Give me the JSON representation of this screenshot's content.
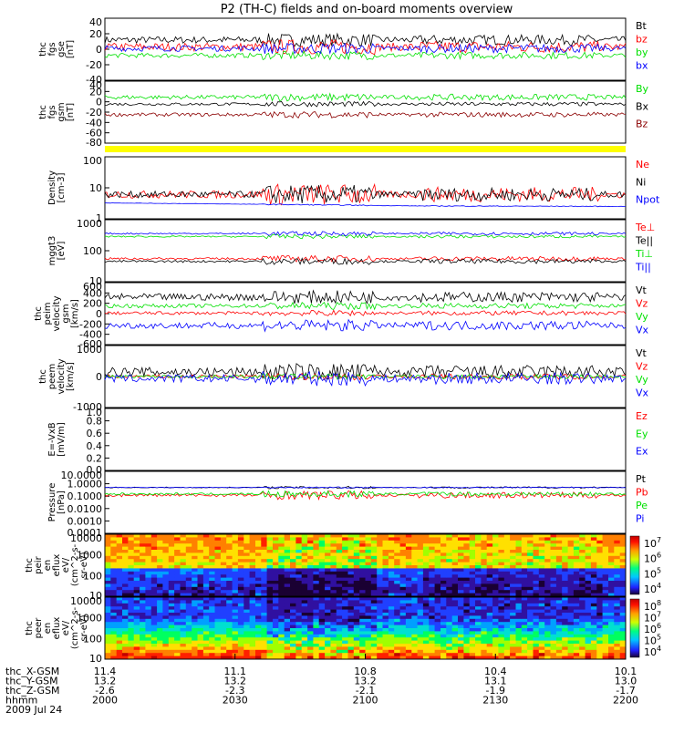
{
  "title": "P2 (TH-C) fields and on-board moments overview",
  "colors": {
    "black": "#000000",
    "red": "#ff0000",
    "green": "#00e000",
    "blue": "#0000ff",
    "darkred": "#8b0000",
    "yellow": "#ffff00"
  },
  "chart_data": [
    {
      "type": "line",
      "panel": "fgs-gse",
      "ylabel": [
        "thc",
        "fgs",
        "gse",
        "[nT]"
      ],
      "yticks": [
        "40",
        "20",
        "0",
        "-20",
        "-40"
      ],
      "ylim": [
        -40,
        40
      ],
      "series": [
        {
          "name": "Bt",
          "color": "#000000",
          "level": 12,
          "amp": 6
        },
        {
          "name": "bz",
          "color": "#ff0000",
          "level": 3,
          "amp": 7
        },
        {
          "name": "by",
          "color": "#00e000",
          "level": -8,
          "amp": 4
        },
        {
          "name": "bx",
          "color": "#0000ff",
          "level": 1,
          "amp": 5
        }
      ]
    },
    {
      "type": "line",
      "panel": "fgs-gsm",
      "ylabel": [
        "thc",
        "fgs",
        "gsm",
        "[nT]"
      ],
      "yticks": [
        "40",
        "20",
        "0",
        "-20",
        "-40",
        "-60",
        "-80"
      ],
      "ylim": [
        -90,
        45
      ],
      "series": [
        {
          "name": "By",
          "color": "#00e000",
          "level": 10,
          "amp": 6
        },
        {
          "name": "Bx",
          "color": "#000000",
          "level": -5,
          "amp": 4
        },
        {
          "name": "Bz",
          "color": "#8b0000",
          "level": -28,
          "amp": 5
        }
      ]
    },
    {
      "type": "line",
      "panel": "density",
      "log": true,
      "ylabel": [
        "Density",
        "[cm-3]"
      ],
      "yticks": [
        "100",
        "10",
        "1"
      ],
      "ylim": [
        1,
        200
      ],
      "series": [
        {
          "name": "Ne",
          "color": "#ff0000",
          "level": 8,
          "amp": 0.4
        },
        {
          "name": "Ni",
          "color": "#000000",
          "level": 8,
          "amp": 0.35
        },
        {
          "name": "Npot",
          "color": "#0000ff",
          "level": 3,
          "amp": 0.02
        }
      ]
    },
    {
      "type": "line",
      "panel": "temperature",
      "log": true,
      "ylabel": [
        "mggt3",
        "[eV]"
      ],
      "yticks": [
        "1000",
        "100",
        "10"
      ],
      "ylim": [
        5,
        4000
      ],
      "series": [
        {
          "name": "Te⊥",
          "color": "#ff0000",
          "level": 60,
          "amp": 0.15
        },
        {
          "name": "Te||",
          "color": "#000000",
          "level": 45,
          "amp": 0.15
        },
        {
          "name": "Ti⊥",
          "color": "#00e000",
          "level": 650,
          "amp": 0.1
        },
        {
          "name": "Ti||",
          "color": "#0000ff",
          "level": 900,
          "amp": 0.1
        }
      ]
    },
    {
      "type": "line",
      "panel": "peim-velocity",
      "ylabel": [
        "thc",
        "peim",
        "velocity",
        "gsm",
        "[km/s]"
      ],
      "yticks": [
        "600",
        "400",
        "200",
        "0",
        "-200",
        "-400",
        "-600"
      ],
      "ylim": [
        -600,
        600
      ],
      "series": [
        {
          "name": "Vt",
          "color": "#000000",
          "level": 320,
          "amp": 90
        },
        {
          "name": "Vz",
          "color": "#ff0000",
          "level": 10,
          "amp": 40
        },
        {
          "name": "Vy",
          "color": "#00e000",
          "level": 150,
          "amp": 50
        },
        {
          "name": "Vx",
          "color": "#0000ff",
          "level": -230,
          "amp": 80
        }
      ]
    },
    {
      "type": "line",
      "panel": "peem-velocity",
      "ylabel": [
        "thc",
        "peem",
        "velocity",
        "[km/s]"
      ],
      "yticks": [
        "1000",
        "0",
        "-1000"
      ],
      "ylim": [
        -1500,
        1500
      ],
      "series": [
        {
          "name": "Vt",
          "color": "#000000",
          "level": 220,
          "amp": 300
        },
        {
          "name": "Vz",
          "color": "#ff0000",
          "level": 0,
          "amp": 120
        },
        {
          "name": "Vy",
          "color": "#00e000",
          "level": 0,
          "amp": 100
        },
        {
          "name": "Vx",
          "color": "#0000ff",
          "level": -100,
          "amp": 250
        }
      ]
    },
    {
      "type": "line",
      "panel": "efield",
      "ylabel": [
        "E=-VxB",
        "[mV/m]"
      ],
      "yticks": [
        "1.0",
        "0.8",
        "0.6",
        "0.4",
        "0.2",
        "0.0"
      ],
      "ylim": [
        0,
        1
      ],
      "series": [
        {
          "name": "Ez",
          "color": "#ff0000"
        },
        {
          "name": "Ey",
          "color": "#00e000"
        },
        {
          "name": "Ex",
          "color": "#0000ff"
        }
      ]
    },
    {
      "type": "line",
      "panel": "pressure",
      "log": true,
      "ylabel": [
        "Pressure",
        "[nPa]"
      ],
      "yticks": [
        "10.0000",
        "1.0000",
        "0.1000",
        "0.0100",
        "0.0010",
        "0.0001"
      ],
      "ylim": [
        0.0001,
        10
      ],
      "series": [
        {
          "name": "Pt",
          "color": "#000000",
          "level": 0.5,
          "amp": 0.1
        },
        {
          "name": "Pb",
          "color": "#ff0000",
          "level": 0.12,
          "amp": 0.35
        },
        {
          "name": "Pe",
          "color": "#00e000",
          "level": 0.15,
          "amp": 0.25
        },
        {
          "name": "Pi",
          "color": "#0000ff",
          "level": 0.5,
          "amp": 0.05
        }
      ]
    },
    {
      "type": "heatmap",
      "panel": "peir-spectrogram",
      "ylabel": [
        "thc",
        "peir",
        "en",
        "eflux",
        "eV/",
        "(cm^2-s-",
        "sr-eV)"
      ],
      "yticks": [
        "10000",
        "1000",
        "100",
        "10"
      ],
      "colorbar_ticks": [
        "10^7",
        "10^6",
        "10^5",
        "10^4"
      ]
    },
    {
      "type": "heatmap",
      "panel": "peer-spectrogram",
      "ylabel": [
        "thc",
        "peer",
        "en",
        "eflux",
        "eV/",
        "(cm^2-s-",
        "sr-eV)"
      ],
      "yticks": [
        "10000",
        "1000",
        "100",
        "10"
      ],
      "colorbar_ticks": [
        "10^8",
        "10^7",
        "10^6",
        "10^5",
        "10^4"
      ]
    }
  ],
  "xaxis": {
    "rows": [
      {
        "label": "thc_X-GSM",
        "values": [
          "11.4",
          "11.1",
          "10.8",
          "10.4",
          "10.1"
        ]
      },
      {
        "label": "thc_Y-GSM",
        "values": [
          "13.2",
          "13.2",
          "13.2",
          "13.1",
          "13.0"
        ]
      },
      {
        "label": "thc_Z-GSM",
        "values": [
          "-2.6",
          "-2.3",
          "-2.1",
          "-1.9",
          "-1.7"
        ]
      },
      {
        "label": "hhmm",
        "values": [
          "2000",
          "2030",
          "2100",
          "2130",
          "2200"
        ]
      }
    ],
    "date": "2009 Jul 24"
  }
}
